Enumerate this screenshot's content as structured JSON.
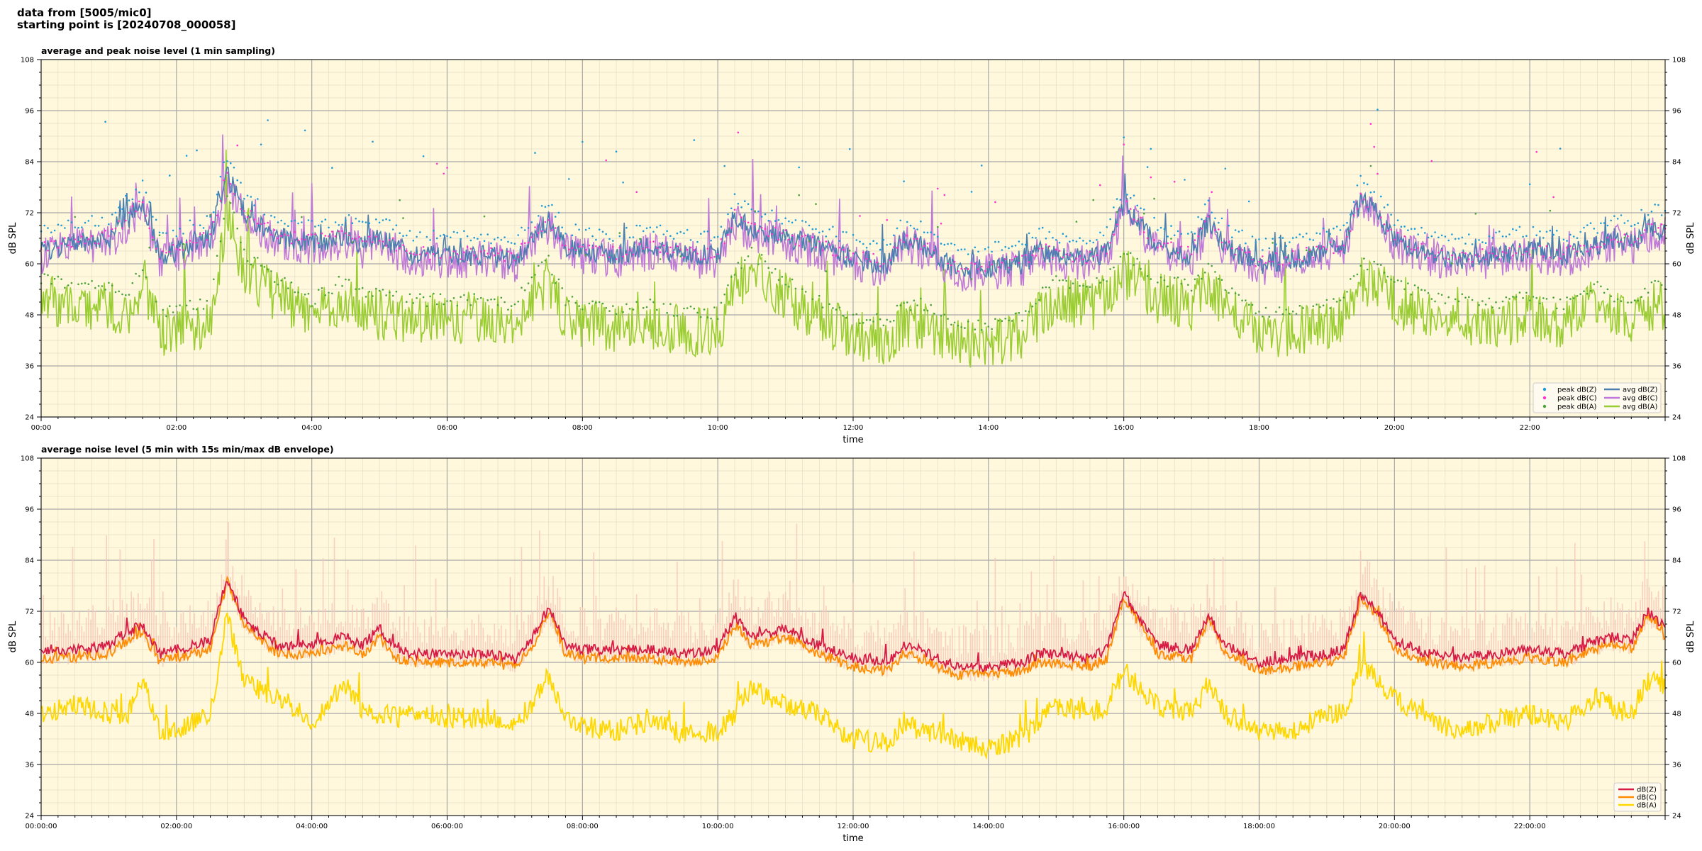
{
  "header": {
    "line1": "data from [5005/mic0]",
    "line2": "starting point is [20240708_000058]"
  },
  "colors": {
    "plot_bg": "#fff8dc",
    "peak_z": "#1f9bd7",
    "peak_c": "#ff33cc",
    "peak_a": "#4aa33a",
    "avg_z": "#4a7fb0",
    "avg_c": "#c07ad8",
    "avg_a": "#9acd32",
    "env": "#f7c6b8",
    "db_z": "#d81b45",
    "db_c": "#ff8c00",
    "db_a": "#ffd700"
  },
  "chart_data": [
    {
      "type": "line",
      "title": "average and peak noise level (1 min sampling)",
      "xlabel": "time",
      "ylabel": "dB SPL",
      "ylabel_right": "dB SPL",
      "xlim": [
        0,
        24
      ],
      "ylim": [
        24,
        108
      ],
      "y_ticks": [
        24,
        36,
        48,
        60,
        72,
        84,
        96,
        108
      ],
      "x_tick_hours": [
        0,
        2,
        4,
        6,
        8,
        10,
        12,
        14,
        16,
        18,
        20,
        22
      ],
      "x_tick_labels": [
        "00:00",
        "02:00",
        "04:00",
        "06:00",
        "08:00",
        "10:00",
        "12:00",
        "14:00",
        "16:00",
        "18:00",
        "20:00",
        "22:00"
      ],
      "grid": true,
      "legend_position": "bottom-right",
      "legend": [
        {
          "label": "peak dB(Z)",
          "kind": "dot",
          "color_key": "peak_z"
        },
        {
          "label": "peak dB(C)",
          "kind": "dot",
          "color_key": "peak_c"
        },
        {
          "label": "peak dB(A)",
          "kind": "dot",
          "color_key": "peak_a"
        },
        {
          "label": "avg dB(Z)",
          "kind": "line",
          "color_key": "avg_z"
        },
        {
          "label": "avg dB(C)",
          "kind": "line",
          "color_key": "avg_c"
        },
        {
          "label": "avg dB(A)",
          "kind": "line",
          "color_key": "avg_a"
        }
      ],
      "x": [
        0,
        0.5,
        1,
        1.25,
        1.5,
        1.75,
        2,
        2.5,
        2.75,
        3,
        3.5,
        4,
        4.5,
        4.75,
        5,
        5.25,
        5.5,
        6,
        6.5,
        7,
        7.25,
        7.5,
        7.75,
        8,
        8.5,
        9,
        9.5,
        10,
        10.25,
        10.5,
        11,
        11.5,
        12,
        12.5,
        12.75,
        13,
        13.5,
        14,
        14.5,
        14.75,
        15,
        15.5,
        15.75,
        16,
        16.5,
        17,
        17.25,
        17.5,
        18,
        18.5,
        19,
        19.25,
        19.5,
        19.75,
        20,
        20.5,
        21,
        21.5,
        22,
        22.5,
        23,
        23.25,
        23.5,
        23.75,
        24
      ],
      "series": [
        {
          "name": "avg dB(Z)",
          "color_key": "avg_z",
          "noise": 2.5,
          "values": [
            63,
            65,
            66,
            70,
            74,
            62,
            63,
            66,
            81,
            72,
            66,
            65,
            66,
            64,
            66,
            64,
            62,
            62,
            62,
            61,
            66,
            70,
            64,
            63,
            62,
            64,
            62,
            62,
            71,
            68,
            66,
            64,
            61,
            60,
            66,
            64,
            59,
            59,
            60,
            63,
            62,
            61,
            63,
            74,
            64,
            62,
            70,
            64,
            60,
            61,
            63,
            64,
            75,
            72,
            66,
            62,
            61,
            62,
            63,
            62,
            64,
            66,
            65,
            68,
            68
          ]
        },
        {
          "name": "avg dB(C)",
          "color_key": "avg_c",
          "noise": 4.5,
          "values": [
            62,
            64,
            65,
            69,
            73,
            61,
            62,
            65,
            80,
            71,
            65,
            64,
            65,
            63,
            65,
            63,
            61,
            61,
            61,
            60,
            65,
            69,
            63,
            62,
            61,
            63,
            61,
            61,
            70,
            67,
            65,
            63,
            60,
            59,
            65,
            63,
            58,
            58,
            59,
            62,
            61,
            60,
            62,
            73,
            63,
            61,
            69,
            63,
            59,
            60,
            62,
            63,
            74,
            71,
            65,
            61,
            60,
            61,
            62,
            61,
            63,
            65,
            64,
            67,
            67
          ]
        },
        {
          "name": "avg dB(A)",
          "color_key": "avg_a",
          "noise": 6,
          "values": [
            52,
            50,
            50,
            48,
            55,
            44,
            45,
            46,
            72,
            58,
            52,
            47,
            52,
            49,
            48,
            48,
            47,
            47,
            47,
            46,
            52,
            56,
            47,
            46,
            45,
            46,
            44,
            44,
            54,
            58,
            52,
            47,
            43,
            42,
            46,
            46,
            42,
            41,
            43,
            48,
            52,
            50,
            52,
            58,
            52,
            50,
            55,
            50,
            44,
            44,
            46,
            47,
            56,
            55,
            51,
            48,
            47,
            46,
            48,
            46,
            51,
            48,
            47,
            50,
            50
          ]
        }
      ],
      "peaks": [
        {
          "name": "peak dB(Z)",
          "color_key": "peak_z",
          "offset": 3
        },
        {
          "name": "peak dB(C)",
          "color_key": "peak_c",
          "offset": 0
        },
        {
          "name": "peak dB(A)",
          "color_key": "peak_a",
          "offset": 3
        }
      ]
    },
    {
      "type": "line",
      "title": "average noise level (5 min with 15s min/max dB envelope)",
      "xlabel": "time",
      "ylabel": "dB SPL",
      "ylabel_right": "dB SPL",
      "xlim": [
        0,
        24
      ],
      "ylim": [
        24,
        108
      ],
      "y_ticks": [
        24,
        36,
        48,
        60,
        72,
        84,
        96,
        108
      ],
      "x_tick_hours": [
        0,
        2,
        4,
        6,
        8,
        10,
        12,
        14,
        16,
        18,
        20,
        22
      ],
      "x_tick_labels": [
        "00:00:00",
        "02:00:00",
        "04:00:00",
        "06:00:00",
        "08:00:00",
        "10:00:00",
        "12:00:00",
        "14:00:00",
        "16:00:00",
        "18:00:00",
        "20:00:00",
        "22:00:00"
      ],
      "grid": true,
      "legend_position": "bottom-right",
      "legend": [
        {
          "label": "dB(Z)",
          "kind": "line",
          "color_key": "db_z"
        },
        {
          "label": "dB(C)",
          "kind": "line",
          "color_key": "db_c"
        },
        {
          "label": "dB(A)",
          "kind": "line",
          "color_key": "db_a"
        }
      ],
      "x": [
        0,
        0.5,
        1,
        1.25,
        1.5,
        1.75,
        2,
        2.5,
        2.75,
        3,
        3.5,
        4,
        4.5,
        4.75,
        5,
        5.25,
        5.5,
        6,
        6.5,
        7,
        7.25,
        7.5,
        7.75,
        8,
        8.5,
        9,
        9.5,
        10,
        10.25,
        10.5,
        11,
        11.5,
        12,
        12.5,
        12.75,
        13,
        13.5,
        14,
        14.5,
        14.75,
        15,
        15.5,
        15.75,
        16,
        16.5,
        17,
        17.25,
        17.5,
        18,
        18.5,
        19,
        19.25,
        19.5,
        19.75,
        20,
        20.5,
        21,
        21.5,
        22,
        22.5,
        23,
        23.25,
        23.5,
        23.75,
        24
      ],
      "series": [
        {
          "name": "dB(Z)",
          "color_key": "db_z",
          "noise": 1.2,
          "values": [
            63,
            63,
            64,
            67,
            69,
            62,
            63,
            65,
            80,
            70,
            64,
            64,
            66,
            64,
            68,
            63,
            62,
            62,
            62,
            61,
            65,
            73,
            64,
            63,
            63,
            63,
            62,
            63,
            71,
            66,
            68,
            64,
            61,
            60,
            64,
            63,
            59,
            59,
            60,
            62,
            62,
            61,
            63,
            76,
            64,
            63,
            71,
            64,
            60,
            61,
            62,
            63,
            76,
            72,
            65,
            62,
            61,
            62,
            63,
            62,
            65,
            66,
            65,
            72,
            68
          ]
        },
        {
          "name": "dB(C)",
          "color_key": "db_c",
          "noise": 1.2,
          "values": [
            61,
            61,
            62,
            65,
            67,
            60,
            61,
            63,
            79,
            69,
            62,
            62,
            64,
            62,
            66,
            61,
            60,
            60,
            60,
            59,
            63,
            72,
            62,
            61,
            61,
            61,
            60,
            61,
            69,
            64,
            66,
            62,
            59,
            58,
            62,
            61,
            57,
            57,
            58,
            60,
            60,
            59,
            61,
            75,
            62,
            61,
            70,
            62,
            58,
            59,
            60,
            61,
            75,
            71,
            63,
            60,
            59,
            60,
            61,
            60,
            63,
            64,
            63,
            71,
            66
          ]
        },
        {
          "name": "dB(A)",
          "color_key": "db_a",
          "noise": 2.5,
          "values": [
            48,
            50,
            48,
            47,
            56,
            44,
            44,
            48,
            71,
            55,
            52,
            46,
            55,
            49,
            48,
            47,
            48,
            47,
            47,
            46,
            50,
            57,
            47,
            45,
            44,
            46,
            43,
            44,
            48,
            54,
            50,
            48,
            42,
            41,
            46,
            44,
            42,
            40,
            42,
            46,
            50,
            48,
            50,
            58,
            50,
            48,
            55,
            48,
            44,
            44,
            48,
            48,
            59,
            56,
            52,
            46,
            44,
            46,
            48,
            46,
            52,
            49,
            48,
            56,
            54
          ]
        }
      ],
      "envelope": {
        "color_key": "env",
        "offset": 10
      }
    }
  ]
}
